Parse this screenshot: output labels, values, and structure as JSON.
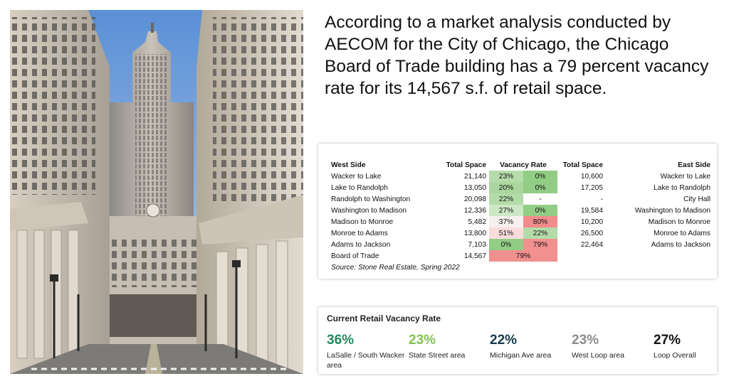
{
  "headline": "According to a market analysis conducted by AECOM for the City of Chicago, the Chicago Board of Trade building has a 79 percent vacancy rate for its 14,567 s.f. of retail space.",
  "vacancy_table": {
    "headers": {
      "west_side": "West Side",
      "total_space_west": "Total Space",
      "vacancy_rate": "Vacancy Rate",
      "total_space_east": "Total Space",
      "east_side": "East Side"
    },
    "rows": [
      {
        "west": "Wacker to Lake",
        "west_space": "21,140",
        "west_rate": "23%",
        "east_rate": "0%",
        "east_space": "10,600",
        "east": "Wacker to Lake",
        "west_color": "#b6dcab",
        "east_color": "#91cd84"
      },
      {
        "west": "Lake to Randolph",
        "west_space": "13,050",
        "west_rate": "20%",
        "east_rate": "0%",
        "east_space": "17,205",
        "east": "Lake to Randolph",
        "west_color": "#abd79f",
        "east_color": "#91cd84"
      },
      {
        "west": "Randolph to Washington",
        "west_space": "20,098",
        "west_rate": "22%",
        "east_rate": "-",
        "east_space": "-",
        "east": "City Hall",
        "west_color": "#b3dba8",
        "east_color": "#ffffff"
      },
      {
        "west": "Washington to Madison",
        "west_space": "12,336",
        "west_rate": "27%",
        "east_rate": "0%",
        "east_space": "19,584",
        "east": "Washington to Madison",
        "west_color": "#cde8c4",
        "east_color": "#91cd84"
      },
      {
        "west": "Madison to Monroe",
        "west_space": "5,482",
        "west_rate": "37%",
        "east_rate": "80%",
        "east_space": "10,200",
        "east": "Madison to Monroe",
        "west_color": "#f6f1ef",
        "east_color": "#f28c8c"
      },
      {
        "west": "Monroe to Adams",
        "west_space": "13,800",
        "west_rate": "51%",
        "east_rate": "22%",
        "east_space": "26,500",
        "east": "Monroe to Adams",
        "west_color": "#fbdcdc",
        "east_color": "#b3dba8"
      },
      {
        "west": "Adams to Jackson",
        "west_space": "7,103",
        "west_rate": "0%",
        "east_rate": "79%",
        "east_space": "22,464",
        "east": "Adams to Jackson",
        "west_color": "#91cd84",
        "east_color": "#f28f8f"
      }
    ],
    "board_of_trade": {
      "label": "Board of Trade",
      "space": "14,567",
      "rate": "79%",
      "color": "#f28f8f"
    },
    "source": "Source: Stone Real Estate, Spring 2022"
  },
  "retail_vacancy": {
    "title": "Current Retail Vacancy Rate",
    "items": [
      {
        "value": "36%",
        "label": "LaSalle / South Wacker area",
        "color": "#1f8a5f"
      },
      {
        "value": "23%",
        "label": "State Street area",
        "color": "#7fc34f"
      },
      {
        "value": "22%",
        "label": "Michigan Ave area",
        "color": "#163a4a"
      },
      {
        "value": "23%",
        "label": "West Loop area",
        "color": "#8c8c8c"
      },
      {
        "value": "27%",
        "label": "Loop Overall",
        "color": "#111111"
      }
    ]
  }
}
